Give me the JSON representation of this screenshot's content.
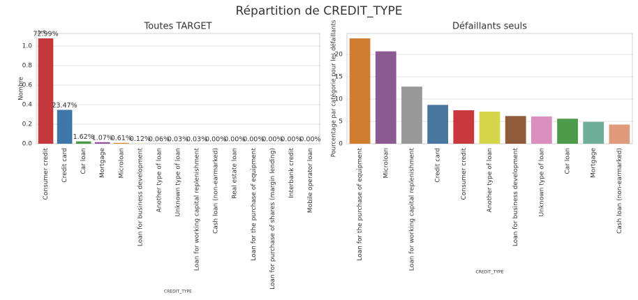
{
  "title": "Répartition de CREDIT_TYPE",
  "chart_data": [
    {
      "type": "bar",
      "title": "Toutes TARGET",
      "ylabel": "Nombre",
      "xlabel": "CREDIT_TYPE",
      "offset_label": "1e6",
      "categories": [
        "Consumer credit",
        "Credit card",
        "Car loan",
        "Mortgage",
        "Microloan",
        "Loan for business development",
        "Another type of loan",
        "Unknown type of loan",
        "Loan for working capital replenishment",
        "Cash loan (non-earmarked)",
        "Real estate loan",
        "Loan for the purchase of equipment",
        "Loan for purchase of shares (margin lending)",
        "Interbank credit",
        "Mobile operator loan"
      ],
      "values": [
        1.08,
        0.347,
        0.024,
        0.016,
        0.009,
        0.0018,
        0.0009,
        0.0004,
        0.0004,
        4e-05,
        4e-05,
        3e-05,
        1e-05,
        1e-06,
        1e-06
      ],
      "share_labels": [
        "72.99%",
        "23.47%",
        "1.62%",
        "1.07%",
        "0.61%",
        "0.12%",
        "0.06%",
        "0.03%",
        "0.03%",
        "0.00%",
        "0.00%",
        "0.00%",
        "0.00%",
        "0.00%",
        "0.00%"
      ],
      "colors": [
        "#c4373a",
        "#3f77a8",
        "#4a9a48",
        "#8d5597",
        "#e0872a",
        "#d8d843",
        "#955c36",
        "#de8fbf",
        "#999999",
        "#c4373a",
        "#3f77a8",
        "#4a9a48",
        "#8d5597",
        "#e0872a",
        "#d8d843"
      ],
      "ylim": [
        0,
        1.13
      ],
      "yticks": [
        {
          "value": 0,
          "label": "0.0"
        },
        0.2,
        0.4,
        0.6,
        0.8,
        {
          "value": 1,
          "label": "1.0"
        }
      ],
      "grid": true
    },
    {
      "type": "bar",
      "title": "Défaillants seuls",
      "ylabel": "Pourcentage par catégorie pour les défaillants",
      "xlabel": "CREDIT_TYPE",
      "categories": [
        "Loan for the purchase of equipment",
        "Microloan",
        "Loan for working capital replenishment",
        "Credit card",
        "Consumer credit",
        "Another type of loan",
        "Loan for business development",
        "Unknown type of loan",
        "Car loan",
        "Mortgage",
        "Cash loan (non-earmarked)"
      ],
      "values": [
        23.6,
        20.7,
        12.8,
        8.7,
        7.5,
        7.2,
        6.2,
        6.1,
        5.6,
        4.9,
        4.3
      ],
      "colors": [
        "#cf7e2f",
        "#8a5a91",
        "#999999",
        "#4a77a0",
        "#c8393d",
        "#d6d64a",
        "#8f5b3a",
        "#db8fbe",
        "#4e9a4b",
        "#6fae99",
        "#e09a7c"
      ],
      "ylim": [
        0,
        24.7
      ],
      "yticks": [
        0,
        5,
        10,
        15,
        20
      ],
      "grid": true
    }
  ]
}
